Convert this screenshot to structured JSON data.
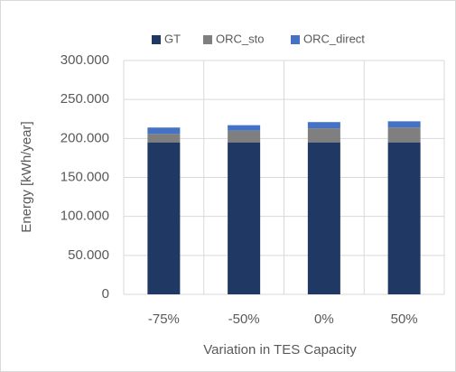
{
  "chart_data": {
    "type": "stacked_bar",
    "categories": [
      "-75%",
      "-50%",
      "0%",
      "50%"
    ],
    "series": [
      {
        "name": "GT",
        "color": "#203864",
        "values": [
          195000,
          195000,
          195000,
          195000
        ]
      },
      {
        "name": "ORC_sto",
        "color": "#7f7f7f",
        "values": [
          11000,
          15000,
          18000,
          19000
        ]
      },
      {
        "name": "ORC_direct",
        "color": "#4472c4",
        "values": [
          8000,
          7000,
          8000,
          8000
        ]
      }
    ],
    "x_label": "Variation in TES Capacity",
    "y_label": "Energy [kWh/year]",
    "ylim": [
      0,
      300000
    ],
    "yticks": [
      0,
      {
        "value": 50000,
        "label": "50.000"
      },
      {
        "value": 100000,
        "label": "100.000"
      },
      {
        "value": 150000,
        "label": "150.000"
      },
      {
        "value": 200000,
        "label": "200.000"
      },
      {
        "value": 250000,
        "label": "250.000"
      },
      {
        "value": 300000,
        "label": "300.000"
      }
    ],
    "grid": true,
    "legend": "top"
  }
}
